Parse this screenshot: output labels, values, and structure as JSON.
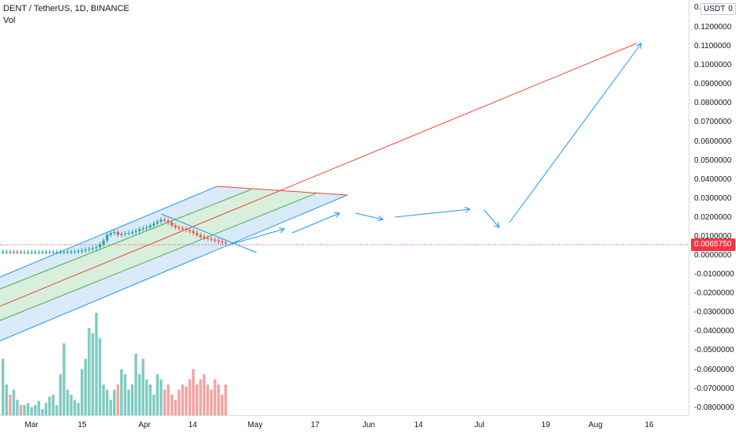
{
  "header": {
    "symbol_line": "DENT / TetherUS, 1D, BINANCE",
    "indicator": "Vol"
  },
  "price_axis": {
    "currency": "USDT",
    "top_label": "0.",
    "top_label_suffix": "0",
    "ticks": [
      "0.1200000",
      "0.1100000",
      "0.1000000",
      "0.0900000",
      "0.0800000",
      "0.0700000",
      "0.0600000",
      "0.0500000",
      "0.0400000",
      "0.0300000",
      "0.0200000",
      "0.0100000",
      "0.0000000",
      "-0.0100000",
      "-0.0200000",
      "-0.0300000",
      "-0.0400000",
      "-0.0500000",
      "-0.0600000",
      "-0.0700000",
      "-0.0800000"
    ],
    "last_price": "0.0065750"
  },
  "time_axis": {
    "ticks": [
      "Mar",
      "15",
      "Apr",
      "14",
      "May",
      "17",
      "Jun",
      "14",
      "Jul",
      "19",
      "Aug",
      "16"
    ]
  },
  "colors": {
    "up": "#26a69a",
    "down": "#ef5350",
    "vol_up": "#7ecbc2",
    "vol_down": "#f4a3a1",
    "channel_fill": "#cfe5f7",
    "channel_edge": "#2196f3",
    "mid_fill": "#d6efd8",
    "mid_line": "#4caf50",
    "center_line": "#f44336",
    "arrow": "#2196f3",
    "last_price": "#f23645"
  },
  "chart_data": {
    "type": "candlestick",
    "series_name": "DENT / TetherUS",
    "interval": "1D",
    "y_range": [
      -0.085,
      0.125
    ],
    "last_price": 0.006575,
    "candles_close": [
      0.0021,
      0.0021,
      0.002,
      0.002,
      0.002,
      0.0019,
      0.0019,
      0.0019,
      0.0019,
      0.0019,
      0.0019,
      0.0019,
      0.0019,
      0.002,
      0.002,
      0.002,
      0.002,
      0.002,
      0.0021,
      0.0021,
      0.0023,
      0.0025,
      0.0028,
      0.0032,
      0.0036,
      0.004,
      0.0045,
      0.006,
      0.008,
      0.011,
      0.012,
      0.0125,
      0.011,
      0.0115,
      0.0118,
      0.012,
      0.0125,
      0.013,
      0.014,
      0.0145,
      0.015,
      0.016,
      0.017,
      0.018,
      0.019,
      0.0185,
      0.0175,
      0.016,
      0.015,
      0.0145,
      0.014,
      0.0135,
      0.013,
      0.012,
      0.011,
      0.01,
      0.0095,
      0.009,
      0.0085,
      0.008,
      0.0075,
      0.007,
      0.0066
    ],
    "volume_relative": [
      0.55,
      0.3,
      0.2,
      0.25,
      0.15,
      0.1,
      0.1,
      0.12,
      0.08,
      0.1,
      0.14,
      0.06,
      0.12,
      0.18,
      0.2,
      0.1,
      0.4,
      0.7,
      0.25,
      0.2,
      0.15,
      0.12,
      0.45,
      0.55,
      0.85,
      0.8,
      1.0,
      0.75,
      0.3,
      0.25,
      0.15,
      0.25,
      0.3,
      0.45,
      0.4,
      0.25,
      0.3,
      0.6,
      0.4,
      0.55,
      0.35,
      0.3,
      0.2,
      0.4,
      0.35,
      0.25,
      0.3,
      0.2,
      0.15,
      0.25,
      0.3,
      0.28,
      0.35,
      0.45,
      0.3,
      0.35,
      0.4,
      0.3,
      0.25,
      0.35,
      0.3,
      0.2,
      0.3
    ]
  }
}
